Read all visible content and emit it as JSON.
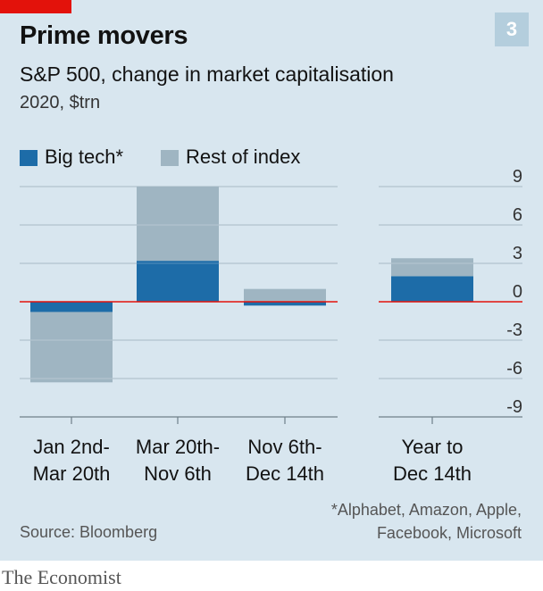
{
  "header": {
    "title": "Prime movers",
    "subtitle": "S&P 500, change in market capitalisation",
    "unit_line": "2020, $trn",
    "badge": "3"
  },
  "legend": {
    "items": [
      {
        "label": "Big tech*",
        "color": "#1d6ca8"
      },
      {
        "label": "Rest of index",
        "color": "#9fb5c2"
      }
    ]
  },
  "chart_data": {
    "type": "bar",
    "stacked": true,
    "categories": [
      [
        "Jan 2nd-",
        "Mar 20th"
      ],
      [
        "Mar 20th-",
        "Nov 6th"
      ],
      [
        "Nov 6th-",
        "Dec 14th"
      ],
      [
        "Year to",
        "Dec 14th"
      ]
    ],
    "series": [
      {
        "name": "Big tech*",
        "values": [
          -0.8,
          3.2,
          -0.3,
          2.0
        ],
        "color": "#1d6ca8"
      },
      {
        "name": "Rest of index",
        "values": [
          -5.5,
          5.8,
          1.0,
          1.4
        ],
        "color": "#9fb5c2"
      }
    ],
    "ylim": [
      -9,
      9
    ],
    "yticks": [
      9,
      6,
      3,
      0,
      -3,
      -6,
      -9
    ],
    "ytick_labels": [
      "9",
      "6",
      "3",
      "0",
      "-3",
      "-6",
      "-9"
    ],
    "zero_line_color": "#e3120b",
    "grid": true,
    "legend_position": "top-left"
  },
  "footer": {
    "source": "Source: Bloomberg",
    "footnote_line1": "*Alphabet, Amazon, Apple,",
    "footnote_line2": "Facebook, Microsoft",
    "logo": "The Economist"
  },
  "colors": {
    "background": "#d8e6ef",
    "brand_red": "#e3120b",
    "badge": "#b4cedd",
    "grid": "#a9bac5",
    "text": "#121212"
  }
}
